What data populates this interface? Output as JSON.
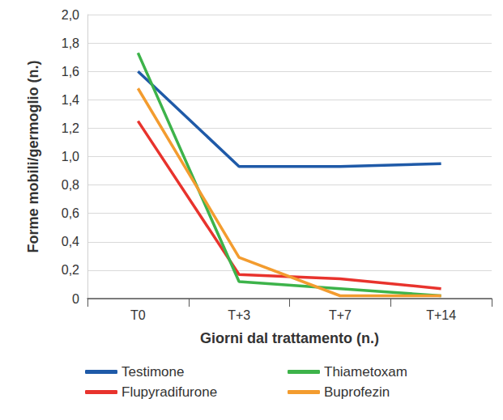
{
  "chart_data": {
    "type": "line",
    "x_label": "Giorni dal trattamento (n.)",
    "y_label": "Forme mobili/germoglio (n.)",
    "categories": [
      "T0",
      "T+3",
      "T+7",
      "T+14"
    ],
    "series": [
      {
        "name": "Testimone",
        "color": "#1f5aa8",
        "values": [
          1.6,
          0.93,
          0.93,
          0.95
        ]
      },
      {
        "name": "Flupyradifurone",
        "color": "#e8332d",
        "values": [
          1.25,
          0.17,
          0.14,
          0.07
        ]
      },
      {
        "name": "Thiametoxam",
        "color": "#3db34a",
        "values": [
          1.73,
          0.12,
          0.07,
          0.02
        ]
      },
      {
        "name": "Buprofezin",
        "color": "#f39c2f",
        "values": [
          1.48,
          0.29,
          0.02,
          0.02
        ]
      }
    ],
    "ylim": [
      0,
      2.0
    ],
    "yticks": [
      0,
      {
        "value": 0.2,
        "label": "0,2"
      },
      {
        "value": 0.4,
        "label": "0,4"
      },
      {
        "value": 0.6,
        "label": "0,6"
      },
      {
        "value": 0.8,
        "label": "0,8"
      },
      {
        "value": 1.0,
        "label": "1,0"
      },
      {
        "value": 1.2,
        "label": "1,2"
      },
      {
        "value": 1.4,
        "label": "1,4"
      },
      {
        "value": 1.6,
        "label": "1,6"
      },
      {
        "value": 1.8,
        "label": "1,8"
      },
      {
        "value": 2.0,
        "label": "2,0"
      }
    ],
    "grid": true,
    "legend": "bottom"
  }
}
